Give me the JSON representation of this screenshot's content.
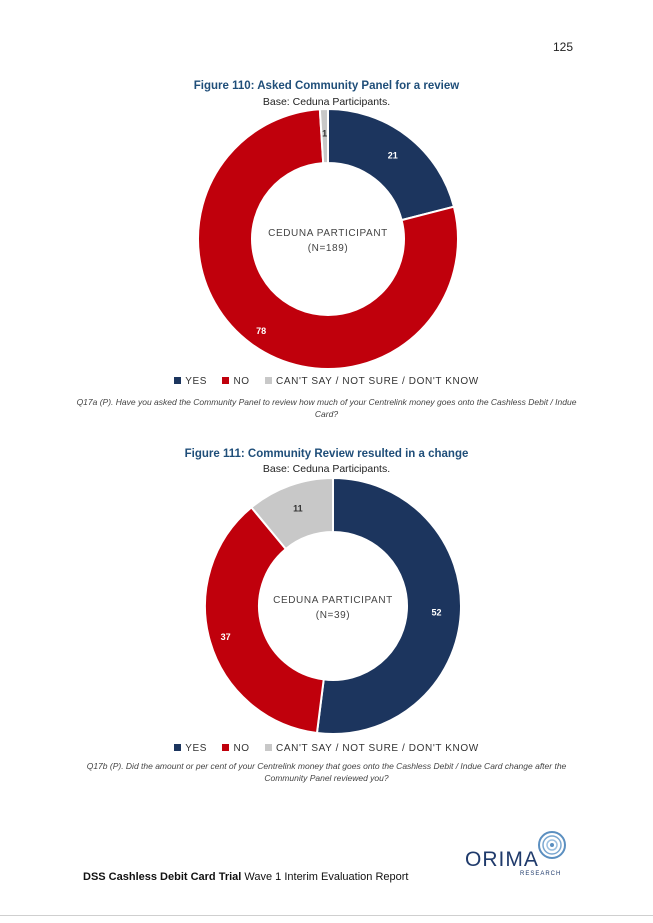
{
  "page_number": "125",
  "figures": [
    {
      "title": "Figure 110: Asked Community Panel for a review",
      "subtitle": "Base: Ceduna Participants.",
      "center_line1": "CEDUNA PARTICIPANT",
      "center_line2": "(N=189)",
      "question": "Q17a (P). Have you asked the Community Panel to review how much of your Centrelink money goes onto the Cashless Debit / Indue Card?"
    },
    {
      "title": "Figure 111: Community Review resulted in a change",
      "subtitle": "Base: Ceduna Participants.",
      "center_line1": "CEDUNA PARTICIPANT",
      "center_line2": "(N=39)",
      "question": "Q17b (P). Did the amount or per cent of your Centrelink money that goes onto the Cashless Debit / Indue Card change after the Community Panel reviewed you?"
    }
  ],
  "legend": {
    "yes": "YES",
    "no": "NO",
    "unsure": "CAN'T SAY / NOT SURE / DON'T KNOW"
  },
  "chart_data": [
    {
      "type": "pie",
      "title": "Figure 110: Asked Community Panel for a review",
      "categories": [
        "YES",
        "NO",
        "CAN'T SAY / NOT SURE / DON'T KNOW"
      ],
      "values": [
        21,
        78,
        1
      ],
      "colors": [
        "#1c355e",
        "#c0000c",
        "#c8c8c8"
      ]
    },
    {
      "type": "pie",
      "title": "Figure 111: Community Review resulted in a change",
      "categories": [
        "YES",
        "NO",
        "CAN'T SAY / NOT SURE / DON'T KNOW"
      ],
      "values": [
        52,
        37,
        11
      ],
      "colors": [
        "#1c355e",
        "#c0000c",
        "#c8c8c8"
      ]
    }
  ],
  "footer": {
    "bold": "DSS Cashless Debit Card Trial",
    "normal": " Wave 1 Interim Evaluation Report"
  },
  "logo": {
    "name": "ORIMA",
    "sub": "RESEARCH"
  }
}
